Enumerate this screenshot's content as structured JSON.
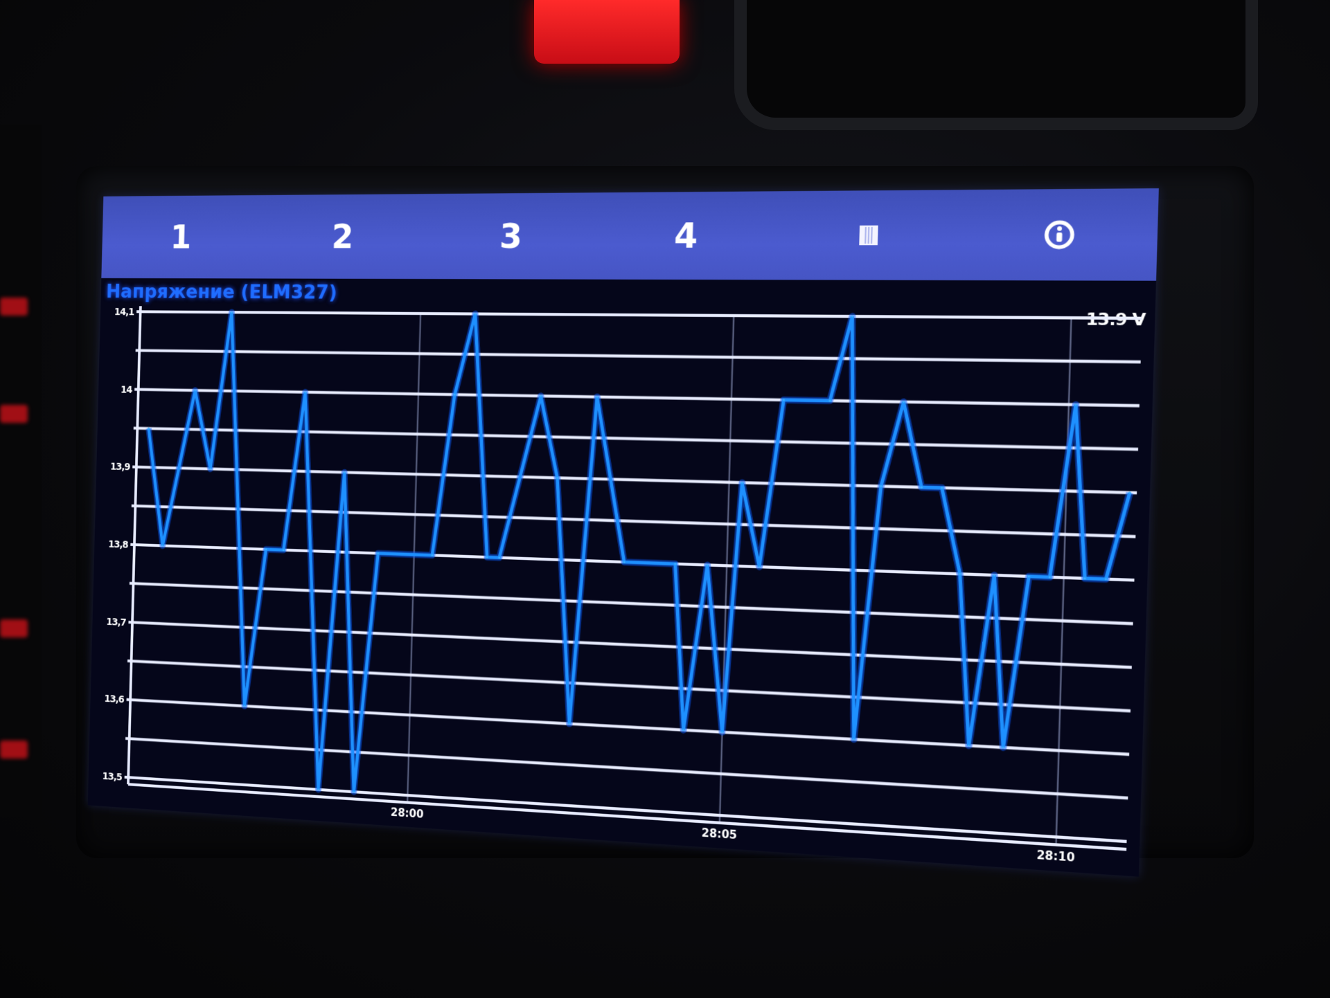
{
  "header": {
    "tabs": [
      {
        "label": "1"
      },
      {
        "label": "2"
      },
      {
        "label": "3"
      },
      {
        "label": "4"
      }
    ],
    "icons": [
      "grid-icon",
      "info-icon"
    ]
  },
  "colors": {
    "header": "#4b5bcf",
    "line": "#1e90ff",
    "grid": "#e8ecff",
    "title": "#1f6dff",
    "background": "#05061a"
  },
  "current_value": "13.9 V",
  "chart_data": {
    "type": "line",
    "title": "Напряжение (ELM327)",
    "xlabel": "",
    "ylabel": "",
    "ylim": [
      13.5,
      14.1
    ],
    "yticks": [
      {
        "v": 14.1,
        "label": "14,1"
      },
      {
        "v": 14.0,
        "label": "14"
      },
      {
        "v": 13.9,
        "label": "13,9"
      },
      {
        "v": 13.8,
        "label": "13,8"
      },
      {
        "v": 13.7,
        "label": "13,7"
      },
      {
        "v": 13.6,
        "label": "13,6"
      },
      {
        "v": 13.5,
        "label": "13,5"
      }
    ],
    "minor_gridlines": [
      14.05,
      13.95,
      13.85,
      13.75,
      13.65,
      13.55
    ],
    "xlim": [
      "27:55.2",
      "28:11.0"
    ],
    "xticks": [
      {
        "t": "28:00",
        "label": "28:00"
      },
      {
        "t": "28:05",
        "label": "28:05"
      },
      {
        "t": "28:10",
        "label": "28:10"
      }
    ],
    "grid": true,
    "series": [
      {
        "x": [
          "27:55.4",
          "27:55.7",
          "27:56.2",
          "27:56.5",
          "27:56.8",
          "27:57.2",
          "27:57.5",
          "27:57.8",
          "27:58.1",
          "27:58.5",
          "27:58.8",
          "27:59.1",
          "27:59.4",
          "28:00.3",
          "28:00.6",
          "28:00.9",
          "28:01.2",
          "28:01.4",
          "28:02.0",
          "28:02.3",
          "28:02.6",
          "28:02.9",
          "28:03.4",
          "28:04.2",
          "28:04.4",
          "28:04.7",
          "28:05.0",
          "28:05.2",
          "28:05.5",
          "28:05.8",
          "28:06.5",
          "28:06.8",
          "28:07.0",
          "28:07.3",
          "28:07.6",
          "28:07.9",
          "28:08.2",
          "28:08.5",
          "28:08.7",
          "28:09.0",
          "28:09.2",
          "28:09.5",
          "28:09.8",
          "28:10.1",
          "28:10.3",
          "28:10.6",
          "28:10.9"
        ],
        "y": [
          13.95,
          13.8,
          14.0,
          13.9,
          14.1,
          13.6,
          13.8,
          13.8,
          14.0,
          13.5,
          13.9,
          13.5,
          13.8,
          13.8,
          14.0,
          14.1,
          13.8,
          13.8,
          14.0,
          13.9,
          13.6,
          14.0,
          13.8,
          13.8,
          13.6,
          13.8,
          13.6,
          13.9,
          13.8,
          14.0,
          14.0,
          14.1,
          13.6,
          13.9,
          14.0,
          13.9,
          13.9,
          13.8,
          13.6,
          13.8,
          13.6,
          13.8,
          13.8,
          14.0,
          13.8,
          13.8,
          13.9
        ]
      }
    ]
  }
}
